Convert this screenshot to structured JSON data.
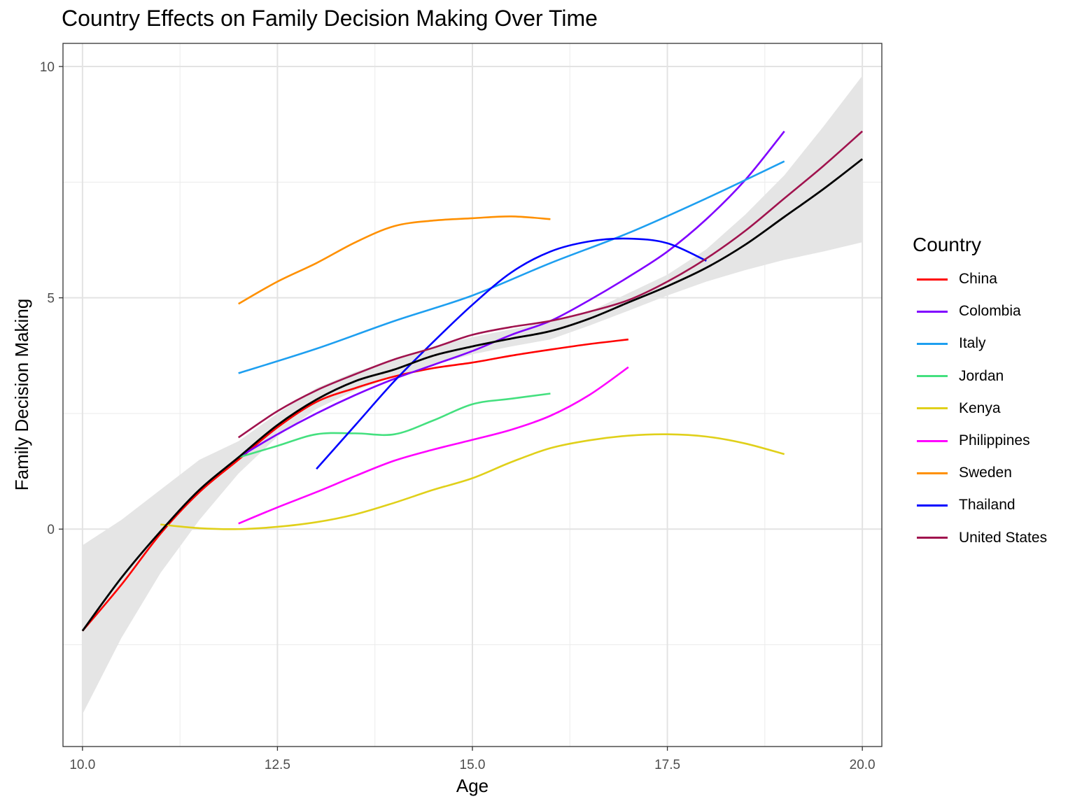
{
  "chart_data": {
    "type": "line",
    "title": "Country Effects on Family Decision Making Over Time",
    "xlabel": "Age",
    "ylabel": "Family Decision Making",
    "xlim": [
      9.75,
      20.25
    ],
    "ylim": [
      -4.7,
      10.5
    ],
    "x_ticks": [
      10.0,
      12.5,
      15.0,
      17.5,
      20.0
    ],
    "x_tick_labels": [
      "10.0",
      "12.5",
      "15.0",
      "17.5",
      "20.0"
    ],
    "y_ticks": [
      0,
      5,
      10
    ],
    "y_tick_labels": [
      "0",
      "5",
      "10"
    ],
    "grid": true,
    "legend_title": "Country",
    "legend_position": "right",
    "series": [
      {
        "name": "China",
        "color": "#ff0000",
        "points": [
          [
            10,
            -2.2
          ],
          [
            10.5,
            -1.2
          ],
          [
            11,
            -0.1
          ],
          [
            11.5,
            0.8
          ],
          [
            12,
            1.5
          ],
          [
            12.5,
            2.2
          ],
          [
            13,
            2.75
          ],
          [
            13.5,
            3.05
          ],
          [
            14,
            3.3
          ],
          [
            14.5,
            3.48
          ],
          [
            15,
            3.6
          ],
          [
            15.5,
            3.75
          ],
          [
            16,
            3.88
          ],
          [
            16.5,
            4.0
          ],
          [
            17,
            4.1
          ]
        ]
      },
      {
        "name": "Colombia",
        "color": "#8000ff",
        "points": [
          [
            12,
            1.55
          ],
          [
            12.5,
            2.05
          ],
          [
            13,
            2.5
          ],
          [
            13.5,
            2.9
          ],
          [
            14,
            3.25
          ],
          [
            14.5,
            3.55
          ],
          [
            15,
            3.85
          ],
          [
            15.5,
            4.2
          ],
          [
            16,
            4.5
          ],
          [
            16.5,
            4.95
          ],
          [
            17,
            5.45
          ],
          [
            17.5,
            6.0
          ],
          [
            18,
            6.7
          ],
          [
            18.5,
            7.55
          ],
          [
            19,
            8.6
          ]
        ]
      },
      {
        "name": "Italy",
        "color": "#1e9ff0",
        "points": [
          [
            12,
            3.37
          ],
          [
            13,
            3.9
          ],
          [
            14,
            4.5
          ],
          [
            15,
            5.05
          ],
          [
            16,
            5.75
          ],
          [
            17,
            6.4
          ],
          [
            18,
            7.15
          ],
          [
            19,
            7.95
          ]
        ]
      },
      {
        "name": "Jordan",
        "color": "#44e07f",
        "points": [
          [
            12,
            1.55
          ],
          [
            12.5,
            1.8
          ],
          [
            13,
            2.05
          ],
          [
            13.5,
            2.07
          ],
          [
            14,
            2.05
          ],
          [
            14.5,
            2.35
          ],
          [
            15,
            2.7
          ],
          [
            15.5,
            2.82
          ],
          [
            16,
            2.93
          ]
        ]
      },
      {
        "name": "Kenya",
        "color": "#e0d01a",
        "points": [
          [
            11,
            0.1
          ],
          [
            11.5,
            0.02
          ],
          [
            12,
            0.0
          ],
          [
            12.5,
            0.05
          ],
          [
            13,
            0.15
          ],
          [
            13.5,
            0.32
          ],
          [
            14,
            0.57
          ],
          [
            14.5,
            0.85
          ],
          [
            15,
            1.1
          ],
          [
            15.5,
            1.45
          ],
          [
            16,
            1.75
          ],
          [
            16.5,
            1.92
          ],
          [
            17,
            2.02
          ],
          [
            17.5,
            2.05
          ],
          [
            18,
            2.0
          ],
          [
            18.5,
            1.85
          ],
          [
            19,
            1.62
          ]
        ]
      },
      {
        "name": "Philippines",
        "color": "#ff00ff",
        "points": [
          [
            12,
            0.12
          ],
          [
            12.5,
            0.47
          ],
          [
            13,
            0.8
          ],
          [
            13.5,
            1.15
          ],
          [
            14,
            1.48
          ],
          [
            14.5,
            1.72
          ],
          [
            15,
            1.93
          ],
          [
            15.5,
            2.15
          ],
          [
            16,
            2.45
          ],
          [
            16.5,
            2.9
          ],
          [
            17,
            3.5
          ]
        ]
      },
      {
        "name": "Sweden",
        "color": "#ff9000",
        "points": [
          [
            12,
            4.87
          ],
          [
            12.5,
            5.35
          ],
          [
            13,
            5.75
          ],
          [
            13.5,
            6.2
          ],
          [
            14,
            6.55
          ],
          [
            14.5,
            6.67
          ],
          [
            15,
            6.72
          ],
          [
            15.5,
            6.76
          ],
          [
            16,
            6.7
          ]
        ]
      },
      {
        "name": "Thailand",
        "color": "#0000ff",
        "points": [
          [
            13,
            1.3
          ],
          [
            13.5,
            2.25
          ],
          [
            14,
            3.2
          ],
          [
            14.5,
            4.05
          ],
          [
            15,
            4.85
          ],
          [
            15.5,
            5.55
          ],
          [
            16,
            6.0
          ],
          [
            16.5,
            6.22
          ],
          [
            17,
            6.28
          ],
          [
            17.5,
            6.18
          ],
          [
            18,
            5.8
          ]
        ]
      },
      {
        "name": "United States",
        "color": "#a0134e",
        "points": [
          [
            12,
            1.98
          ],
          [
            12.5,
            2.55
          ],
          [
            13,
            3.0
          ],
          [
            13.5,
            3.35
          ],
          [
            14,
            3.67
          ],
          [
            14.5,
            3.92
          ],
          [
            15,
            4.2
          ],
          [
            15.5,
            4.37
          ],
          [
            16,
            4.5
          ],
          [
            16.5,
            4.7
          ],
          [
            17,
            4.95
          ],
          [
            17.5,
            5.35
          ],
          [
            18,
            5.85
          ],
          [
            18.5,
            6.45
          ],
          [
            19,
            7.15
          ],
          [
            19.5,
            7.85
          ],
          [
            20,
            8.6
          ]
        ]
      }
    ],
    "overall_fit": {
      "color": "#000000",
      "ribbon_color": "#e5e5e5",
      "points": [
        [
          10,
          -2.2
        ],
        [
          10.5,
          -1.05
        ],
        [
          11,
          -0.05
        ],
        [
          11.5,
          0.85
        ],
        [
          12,
          1.55
        ],
        [
          12.5,
          2.25
        ],
        [
          13,
          2.8
        ],
        [
          13.5,
          3.2
        ],
        [
          14,
          3.45
        ],
        [
          14.5,
          3.75
        ],
        [
          15,
          3.95
        ],
        [
          15.5,
          4.12
        ],
        [
          16,
          4.28
        ],
        [
          16.5,
          4.55
        ],
        [
          17,
          4.9
        ],
        [
          17.5,
          5.25
        ],
        [
          18,
          5.65
        ],
        [
          18.5,
          6.15
        ],
        [
          19,
          6.75
        ],
        [
          19.5,
          7.35
        ],
        [
          20,
          8.0
        ]
      ],
      "lower": [
        [
          10,
          -4.0
        ],
        [
          10.5,
          -2.35
        ],
        [
          11,
          -0.95
        ],
        [
          11.5,
          0.2
        ],
        [
          12,
          1.2
        ],
        [
          12.5,
          2.0
        ],
        [
          13,
          2.6
        ],
        [
          13.5,
          3.0
        ],
        [
          14,
          3.3
        ],
        [
          14.5,
          3.55
        ],
        [
          15,
          3.78
        ],
        [
          15.5,
          3.95
        ],
        [
          16,
          4.1
        ],
        [
          16.5,
          4.4
        ],
        [
          17,
          4.72
        ],
        [
          17.5,
          5.05
        ],
        [
          18,
          5.35
        ],
        [
          18.5,
          5.6
        ],
        [
          19,
          5.82
        ],
        [
          19.5,
          6.0
        ],
        [
          20,
          6.2
        ]
      ],
      "upper": [
        [
          10,
          -0.35
        ],
        [
          10.5,
          0.2
        ],
        [
          11,
          0.85
        ],
        [
          11.5,
          1.5
        ],
        [
          12,
          1.9
        ],
        [
          12.5,
          2.5
        ],
        [
          13,
          3.05
        ],
        [
          13.5,
          3.4
        ],
        [
          14,
          3.65
        ],
        [
          14.5,
          3.95
        ],
        [
          15,
          4.15
        ],
        [
          15.5,
          4.32
        ],
        [
          16,
          4.48
        ],
        [
          16.5,
          4.7
        ],
        [
          17,
          5.1
        ],
        [
          17.5,
          5.5
        ],
        [
          18,
          6.05
        ],
        [
          18.5,
          6.8
        ],
        [
          19,
          7.65
        ],
        [
          19.5,
          8.7
        ],
        [
          20,
          9.8
        ]
      ]
    }
  }
}
